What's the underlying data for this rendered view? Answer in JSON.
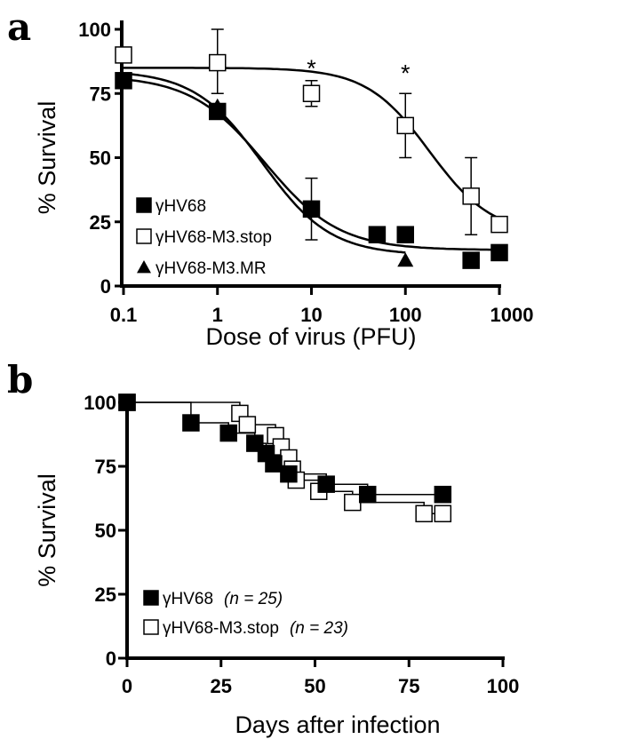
{
  "chart_data": [
    {
      "panel": "a",
      "type": "scatter",
      "xscale": "log",
      "xlabel": "Dose of virus (PFU)",
      "ylabel": "% Survival",
      "xlim": [
        0.1,
        1000
      ],
      "ylim": [
        0,
        100
      ],
      "xticks": [
        {
          "v": 0.1,
          "label": "0.1"
        },
        {
          "v": 1,
          "label": "1"
        },
        {
          "v": 10,
          "label": "10"
        },
        {
          "v": 100,
          "label": "100"
        },
        {
          "v": 1000,
          "label": "1000"
        }
      ],
      "yticks": [
        0,
        25,
        50,
        75,
        100
      ],
      "legend_position": "bottom-left",
      "annotation": "*",
      "significance_marks": [
        {
          "x": 10,
          "y": 81
        },
        {
          "x": 100,
          "y": 79
        }
      ],
      "series": [
        {
          "name": "γHV68",
          "marker": "filled-square",
          "points": [
            {
              "x": 0.1,
              "y": 80
            },
            {
              "x": 1,
              "y": 68
            },
            {
              "x": 10,
              "y": 30,
              "err": [
                18,
                42
              ]
            },
            {
              "x": 50,
              "y": 20
            },
            {
              "x": 100,
              "y": 20
            },
            {
              "x": 500,
              "y": 10
            },
            {
              "x": 1000,
              "y": 13
            }
          ]
        },
        {
          "name": "γHV68-M3.stop",
          "marker": "open-square",
          "points": [
            {
              "x": 0.1,
              "y": 90
            },
            {
              "x": 1,
              "y": 87,
              "err": [
                75,
                100
              ]
            },
            {
              "x": 10,
              "y": 75,
              "err": [
                70,
                80
              ]
            },
            {
              "x": 100,
              "y": 62.5,
              "err": [
                50,
                75
              ]
            },
            {
              "x": 500,
              "y": 35,
              "err": [
                20,
                50
              ]
            },
            {
              "x": 1000,
              "y": 24
            }
          ]
        },
        {
          "name": "γHV68-M3.MR",
          "marker": "filled-triangle",
          "points": [
            {
              "x": 1,
              "y": 70
            },
            {
              "x": 10,
              "y": 30
            },
            {
              "x": 100,
              "y": 10
            }
          ]
        }
      ]
    },
    {
      "panel": "b",
      "type": "line",
      "step": true,
      "xlabel": "Days after infection",
      "ylabel": "% Survival",
      "xlim": [
        0,
        100
      ],
      "ylim": [
        0,
        100
      ],
      "xticks": [
        0,
        25,
        50,
        75,
        100
      ],
      "yticks": [
        0,
        25,
        50,
        75,
        100
      ],
      "legend_position": "bottom-left",
      "series": [
        {
          "name": "γHV68",
          "n_label": "(n = 25)",
          "marker": "filled-square",
          "points": [
            {
              "x": 0,
              "y": 100
            },
            {
              "x": 17,
              "y": 92
            },
            {
              "x": 27,
              "y": 88
            },
            {
              "x": 34,
              "y": 84
            },
            {
              "x": 37,
              "y": 80
            },
            {
              "x": 39,
              "y": 76
            },
            {
              "x": 43,
              "y": 72
            },
            {
              "x": 53,
              "y": 68
            },
            {
              "x": 64,
              "y": 64
            },
            {
              "x": 84,
              "y": 64
            }
          ]
        },
        {
          "name": "γHV68-M3.stop",
          "n_label": "(n = 23)",
          "marker": "open-square",
          "points": [
            {
              "x": 0,
              "y": 100
            },
            {
              "x": 30,
              "y": 95.7
            },
            {
              "x": 32,
              "y": 91.3
            },
            {
              "x": 39.5,
              "y": 87
            },
            {
              "x": 41,
              "y": 82.6
            },
            {
              "x": 43,
              "y": 78.3
            },
            {
              "x": 44,
              "y": 73.9
            },
            {
              "x": 45,
              "y": 69.6
            },
            {
              "x": 51,
              "y": 65.2
            },
            {
              "x": 60,
              "y": 60.9
            },
            {
              "x": 79,
              "y": 56.5
            },
            {
              "x": 84,
              "y": 56.5
            }
          ]
        }
      ]
    }
  ]
}
